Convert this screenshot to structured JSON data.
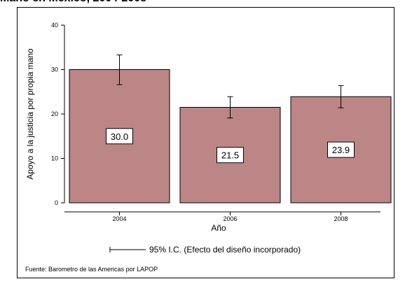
{
  "page": {
    "top_caption": "Mano en México, 2004-2008"
  },
  "chart_data": {
    "type": "bar",
    "title": "",
    "categories": [
      "2004",
      "2006",
      "2008"
    ],
    "values": [
      30.0,
      21.5,
      23.9
    ],
    "value_labels": [
      "30.0",
      "21.5",
      "23.9"
    ],
    "error_low": [
      26.6,
      19.1,
      21.4
    ],
    "error_high": [
      33.3,
      23.9,
      26.4
    ],
    "xlabel": "Año",
    "ylabel": "Apoyo a la justicia por propia mano",
    "ylim": [
      0,
      40
    ],
    "yticks": [
      0,
      10,
      20,
      30,
      40
    ],
    "grid": false,
    "bar_color": "#bc8586",
    "legend_text": "95% I.C. (Efecto del diseño incorporado)",
    "legend_position": "bottom-center",
    "source_note": "Fuente: Barometro de las Americas por LAPOP"
  }
}
